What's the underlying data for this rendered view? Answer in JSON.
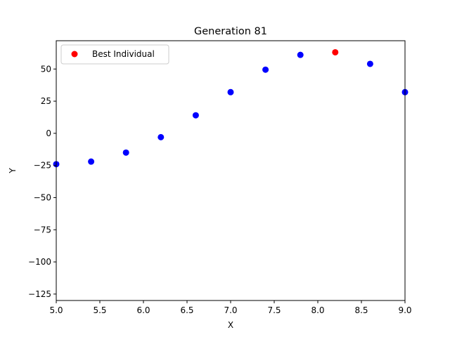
{
  "chart_data": {
    "type": "scatter",
    "title": "Generation 81",
    "xlabel": "X",
    "ylabel": "Y",
    "xlim": [
      5.0,
      9.0
    ],
    "ylim": [
      -130,
      72
    ],
    "xticks": [
      5.0,
      5.5,
      6.0,
      6.5,
      7.0,
      7.5,
      8.0,
      8.5,
      9.0
    ],
    "xtick_labels": [
      "5.0",
      "5.5",
      "6.0",
      "6.5",
      "7.0",
      "7.5",
      "8.0",
      "8.5",
      "9.0"
    ],
    "yticks": [
      50,
      25,
      0,
      -25,
      -50,
      -75,
      -100,
      -125
    ],
    "ytick_labels": [
      "50",
      "25",
      "0",
      "−25",
      "−50",
      "−75",
      "−100",
      "−125"
    ],
    "grid": false,
    "legend_position": "upper-left",
    "series": [
      {
        "color": "#0000ff",
        "points": [
          {
            "x": 5.0,
            "y": -24
          },
          {
            "x": 5.4,
            "y": -22
          },
          {
            "x": 5.8,
            "y": -15
          },
          {
            "x": 6.2,
            "y": -3
          },
          {
            "x": 6.6,
            "y": 14
          },
          {
            "x": 7.0,
            "y": 32
          },
          {
            "x": 7.4,
            "y": 49.5
          },
          {
            "x": 7.8,
            "y": 61
          },
          {
            "x": 8.6,
            "y": 54
          },
          {
            "x": 9.0,
            "y": 32
          }
        ]
      },
      {
        "name": "Best Individual",
        "color": "#ff0000",
        "points": [
          {
            "x": 8.2,
            "y": 63
          }
        ]
      }
    ]
  }
}
